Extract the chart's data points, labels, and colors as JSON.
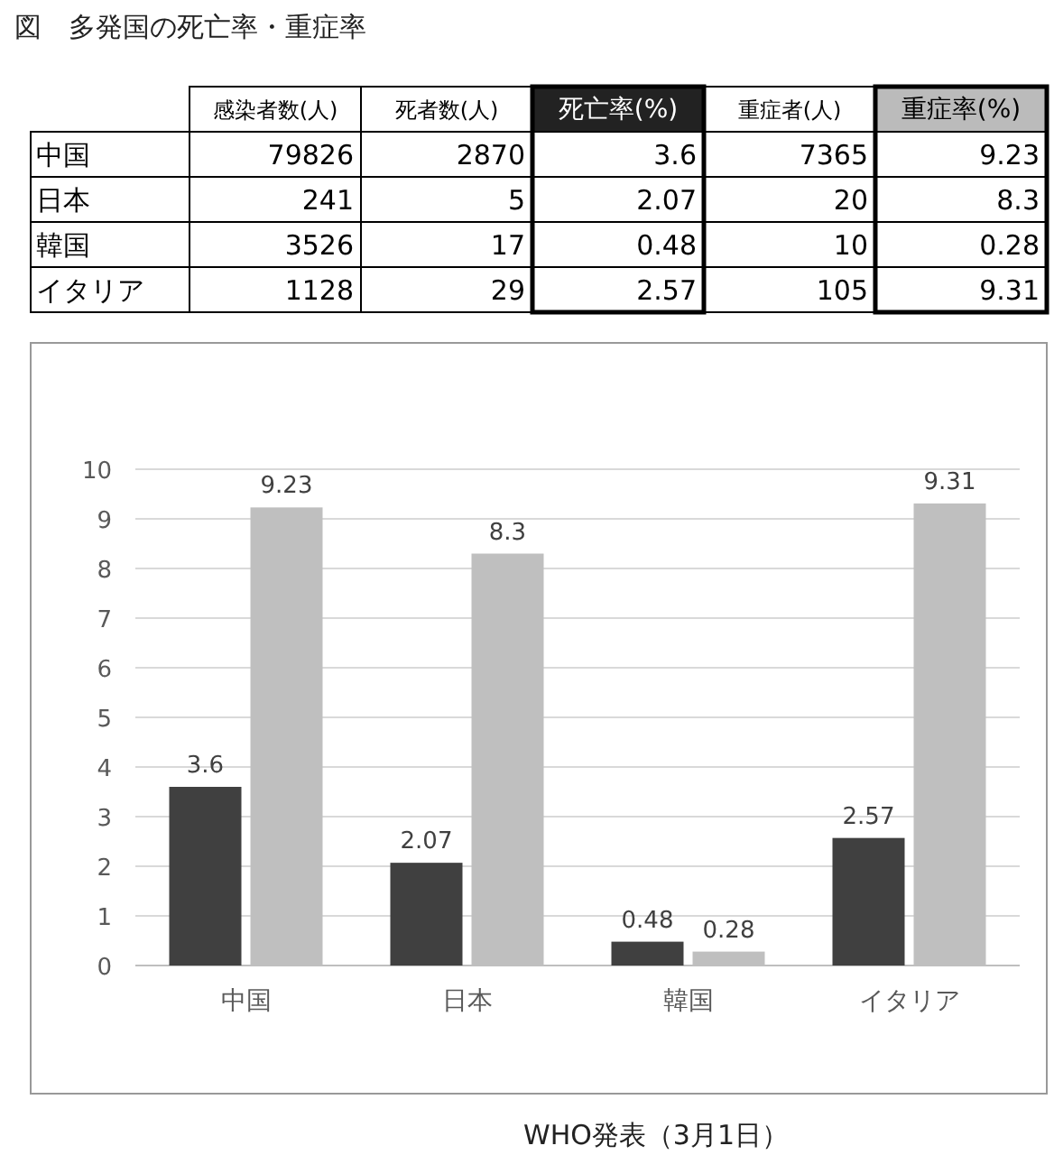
{
  "chart_data": [
    {
      "type": "other",
      "title": "図　多発国の死亡率・重症率",
      "categories": [
        "感染者数(人)",
        "死者数(人)",
        "死亡率(%)",
        "重症者(人)",
        "重症率(%)"
      ],
      "y_categories": [
        "中国",
        "日本",
        "韓国",
        "イタリア"
      ],
      "cell_labels": [
        [
          "79826",
          "2870",
          "3.6",
          "7365",
          "9.23"
        ],
        [
          "241",
          "5",
          "2.07",
          "20",
          "8.3"
        ],
        [
          "3526",
          "17",
          "0.48",
          "10",
          "0.28"
        ],
        [
          "1128",
          "29",
          "2.57",
          "105",
          "9.31"
        ]
      ]
    },
    {
      "type": "bar",
      "categories": [
        "中国",
        "日本",
        "韓国",
        "イタリア"
      ],
      "series": [
        {
          "color": "#404040",
          "values": [
            3.6,
            2.07,
            0.48,
            2.57
          ]
        },
        {
          "color": "#bfbfbf",
          "values": [
            9.23,
            8.3,
            0.28,
            9.31
          ]
        }
      ],
      "ylim": [
        0,
        10
      ],
      "yticks": [
        0,
        1,
        2,
        3,
        4,
        5,
        6,
        7,
        8,
        9,
        10
      ],
      "grid": "y",
      "data_labels": true,
      "annotations": [
        "WHO発表（3月1日）"
      ]
    }
  ]
}
